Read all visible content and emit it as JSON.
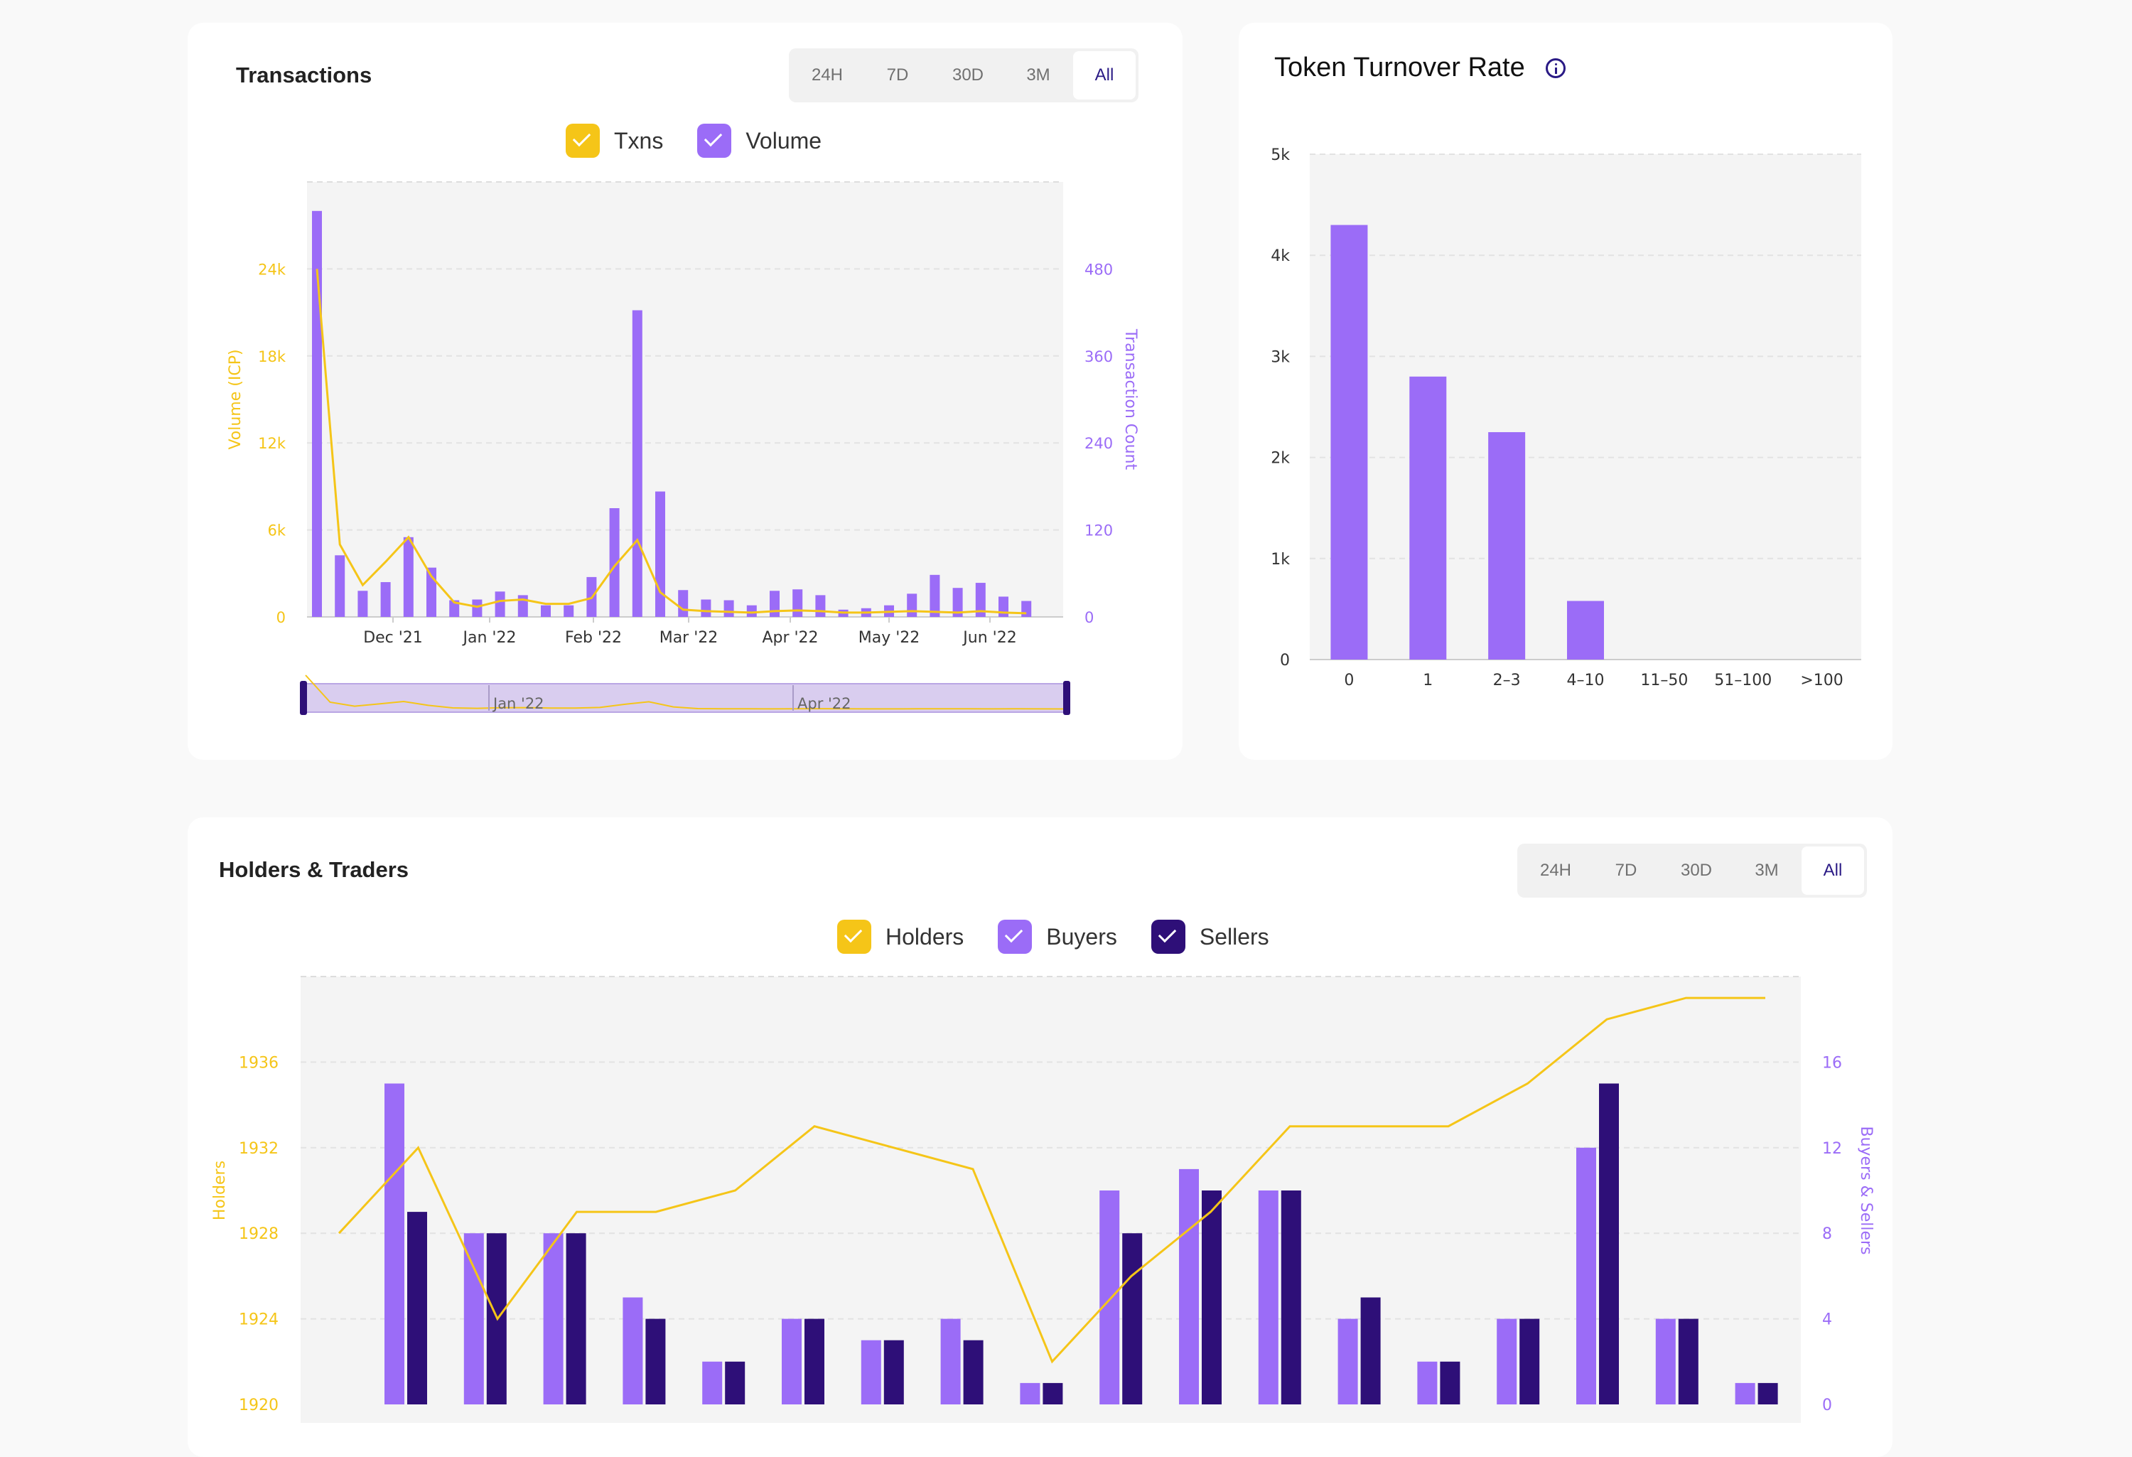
{
  "colors": {
    "yellow": "#f5c518",
    "purple": "#9b6cf7",
    "dark": "#2e0f78"
  },
  "transactions_card": {
    "title": "Transactions",
    "tabs": [
      "24H",
      "7D",
      "30D",
      "3M",
      "All"
    ],
    "active_tab": "All",
    "legend": [
      {
        "label": "Txns",
        "color": "#f5c518"
      },
      {
        "label": "Volume",
        "color": "#9b6cf7"
      }
    ],
    "navigator": {
      "labels": [
        "Jan '22",
        "Apr '22"
      ]
    }
  },
  "turnover_card": {
    "title": "Token Turnover Rate",
    "icon": "info-icon"
  },
  "holders_card": {
    "title": "Holders & Traders",
    "tabs": [
      "24H",
      "7D",
      "30D",
      "3M",
      "All"
    ],
    "active_tab": "All",
    "legend": [
      {
        "label": "Holders",
        "color": "#f5c518"
      },
      {
        "label": "Buyers",
        "color": "#9b6cf7"
      },
      {
        "label": "Sellers",
        "color": "#2e0f78"
      }
    ]
  },
  "chart_data": [
    {
      "type": "bar",
      "id": "transactions",
      "x_labels": [
        "Dec '21",
        "Jan '22",
        "Feb '22",
        "Mar '22",
        "Apr '22",
        "May '22",
        "Jun '22"
      ],
      "y_left": {
        "label": "Volume (ICP)",
        "ticks": [
          "0",
          "6k",
          "12k",
          "18k",
          "24k"
        ],
        "ylim": [
          0,
          30000
        ]
      },
      "y_right": {
        "label": "Transaction Count",
        "ticks": [
          "0",
          "120",
          "240",
          "360",
          "480"
        ],
        "ylim": [
          0,
          600
        ]
      },
      "series": [
        {
          "name": "Volume",
          "kind": "bar",
          "axis": "right",
          "values": [
            560,
            85,
            36,
            48,
            110,
            68,
            23,
            24,
            35,
            30,
            16,
            16,
            55,
            150,
            423,
            173,
            37,
            24,
            23,
            16,
            36,
            38,
            30,
            10,
            12,
            16,
            32,
            58,
            40,
            47,
            28,
            22
          ]
        },
        {
          "name": "Txns",
          "kind": "line",
          "axis": "left",
          "values": [
            24000,
            5000,
            2200,
            3800,
            5500,
            2800,
            1000,
            700,
            1100,
            1200,
            900,
            900,
            1300,
            3500,
            5300,
            1700,
            500,
            400,
            350,
            300,
            400,
            450,
            400,
            300,
            300,
            350,
            400,
            350,
            300,
            400,
            300,
            250
          ]
        }
      ]
    },
    {
      "type": "bar",
      "id": "token-turnover-rate",
      "categories": [
        "0",
        "1",
        "2–3",
        "4–10",
        "11–50",
        "51–100",
        ">100"
      ],
      "values": [
        4300,
        2800,
        2250,
        580,
        0,
        0,
        0
      ],
      "y_ticks": [
        "0",
        "1k",
        "2k",
        "3k",
        "4k",
        "5k"
      ],
      "ylim": [
        0,
        5000
      ]
    },
    {
      "type": "bar",
      "id": "holders-traders",
      "y_left": {
        "label": "Holders",
        "ticks": [
          "1920",
          "1924",
          "1928",
          "1932",
          "1936"
        ],
        "ylim": [
          1920,
          1940
        ]
      },
      "y_right": {
        "label": "Buyers & Sellers",
        "ticks": [
          "0",
          "4",
          "8",
          "12",
          "16"
        ],
        "ylim": [
          0,
          20
        ]
      },
      "series": [
        {
          "name": "Buyers",
          "kind": "bar",
          "axis": "right",
          "values": [
            15,
            8,
            8,
            5,
            2,
            4,
            3,
            4,
            1,
            10,
            11,
            10,
            4,
            2,
            4,
            12,
            4,
            1
          ]
        },
        {
          "name": "Sellers",
          "kind": "bar",
          "axis": "right",
          "values": [
            9,
            8,
            8,
            4,
            2,
            4,
            3,
            3,
            1,
            8,
            10,
            10,
            5,
            2,
            4,
            15,
            4,
            1
          ]
        },
        {
          "name": "Holders",
          "kind": "line",
          "axis": "left",
          "values": [
            1928,
            1932,
            1924,
            1929,
            1929,
            1930,
            1933,
            1932,
            1931,
            1922,
            1926,
            1929,
            1933,
            1933,
            1933,
            1935,
            1938,
            1939,
            1939
          ]
        }
      ]
    }
  ]
}
